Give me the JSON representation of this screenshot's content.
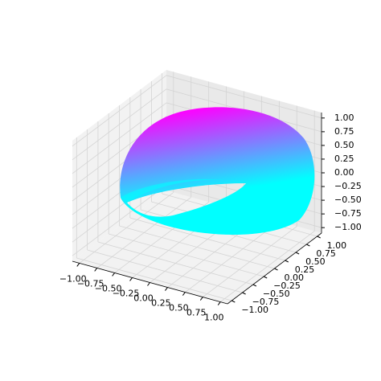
{
  "chart_data": {
    "type": "surface3d",
    "colormap": [
      "#00ffff",
      "#ff00ff"
    ],
    "grid": true,
    "xlim": [
      -1.1,
      1.1
    ],
    "ylim": [
      -1.1,
      1.1
    ],
    "zlim": [
      -1.1,
      1.1
    ],
    "xticks": [
      {
        "value": -1,
        "label": "−1.00"
      },
      {
        "value": -0.75,
        "label": "−0.75"
      },
      {
        "value": -0.5,
        "label": "−0.50"
      },
      {
        "value": -0.25,
        "label": "−0.25"
      },
      {
        "value": 0,
        "label": "0.00"
      },
      {
        "value": 0.25,
        "label": "0.25"
      },
      {
        "value": 0.5,
        "label": "0.50"
      },
      {
        "value": 0.75,
        "label": "0.75"
      },
      {
        "value": 1,
        "label": "1.00"
      }
    ],
    "yticks": [
      {
        "value": -1,
        "label": "−1.00"
      },
      {
        "value": -0.75,
        "label": "−0.75"
      },
      {
        "value": -0.5,
        "label": "−0.50"
      },
      {
        "value": -0.25,
        "label": "−0.25"
      },
      {
        "value": 0,
        "label": "0.00"
      },
      {
        "value": 0.25,
        "label": "0.25"
      },
      {
        "value": 0.5,
        "label": "0.50"
      },
      {
        "value": 0.75,
        "label": "0.75"
      },
      {
        "value": 1,
        "label": "1.00"
      }
    ],
    "zticks": [
      {
        "value": -1,
        "label": "−1.00"
      },
      {
        "value": -0.75,
        "label": "−0.75"
      },
      {
        "value": -0.5,
        "label": "−0.50"
      },
      {
        "value": -0.25,
        "label": "−0.25"
      },
      {
        "value": 0,
        "label": "0.00"
      },
      {
        "value": 0.25,
        "label": "0.25"
      },
      {
        "value": 0.5,
        "label": "0.50"
      },
      {
        "value": 0.75,
        "label": "0.75"
      },
      {
        "value": 1,
        "label": "1.00"
      }
    ]
  }
}
